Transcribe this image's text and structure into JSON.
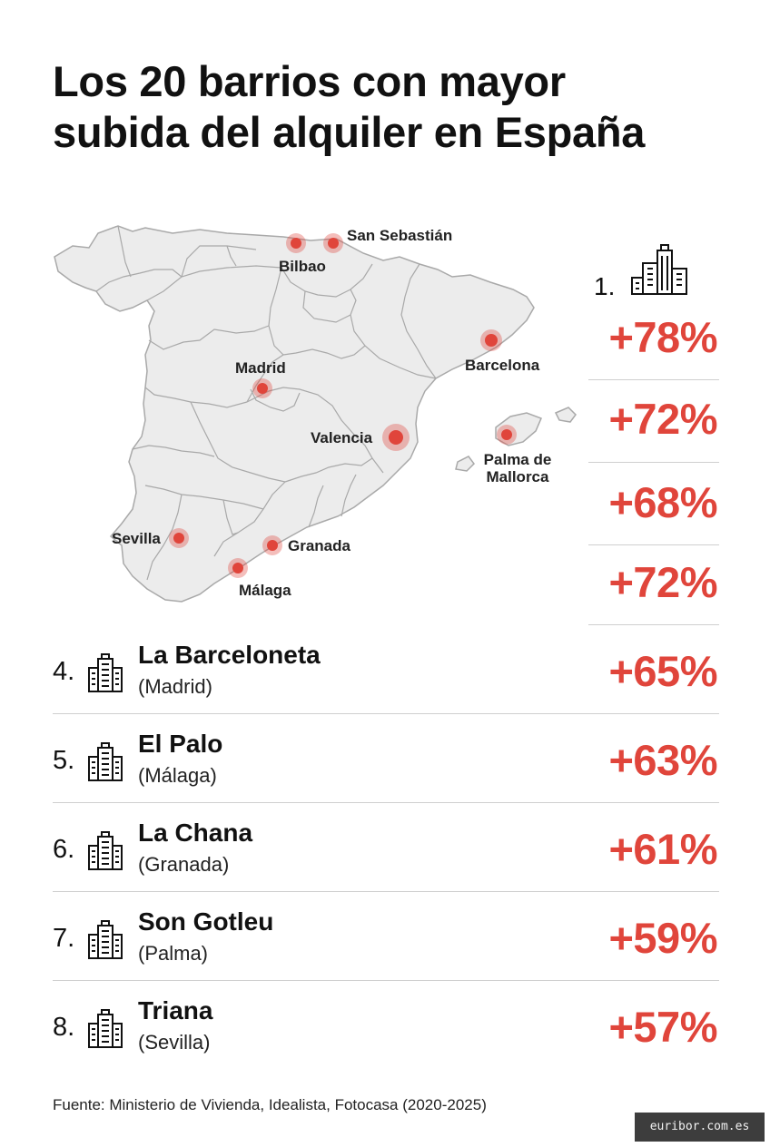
{
  "title": {
    "line1": "Los 20 barrios con mayor",
    "line2": "subida del alquiler en España"
  },
  "map": {
    "cities": [
      {
        "name": "San Sebastián"
      },
      {
        "name": "Bilbao"
      },
      {
        "name": "Barcelona"
      },
      {
        "name": "Madrid"
      },
      {
        "name": "Valencia"
      },
      {
        "name": "Palma de Mallorca"
      },
      {
        "name": "Sevilla"
      },
      {
        "name": "Granada"
      },
      {
        "name": "Málaga"
      }
    ],
    "marker_color": "#e0453b"
  },
  "top_rank": "1.",
  "top_percentages": [
    "+78%",
    "+72%",
    "+68%",
    "+72%"
  ],
  "rows": [
    {
      "rank": "4.",
      "name": "La Barceloneta",
      "city": "(Madrid)",
      "pct": "+65%"
    },
    {
      "rank": "5.",
      "name": "El Palo",
      "city": "(Málaga)",
      "pct": "+63%"
    },
    {
      "rank": "6.",
      "name": "La Chana",
      "city": "(Granada)",
      "pct": "+61%"
    },
    {
      "rank": "7.",
      "name": "Son Gotleu",
      "city": "(Palma)",
      "pct": "+59%"
    },
    {
      "rank": "8.",
      "name": "Triana",
      "city": "(Sevilla)",
      "pct": "+57%"
    }
  ],
  "icons": {
    "building": "building-icon"
  },
  "colors": {
    "accent": "#e0453b",
    "map_fill": "#ececec",
    "map_stroke": "#a9a9a9"
  },
  "source": "Fuente: Ministerio de Vivienda, Idealista, Fotocasa (2020-2025)",
  "watermark": "euribor.com.es"
}
